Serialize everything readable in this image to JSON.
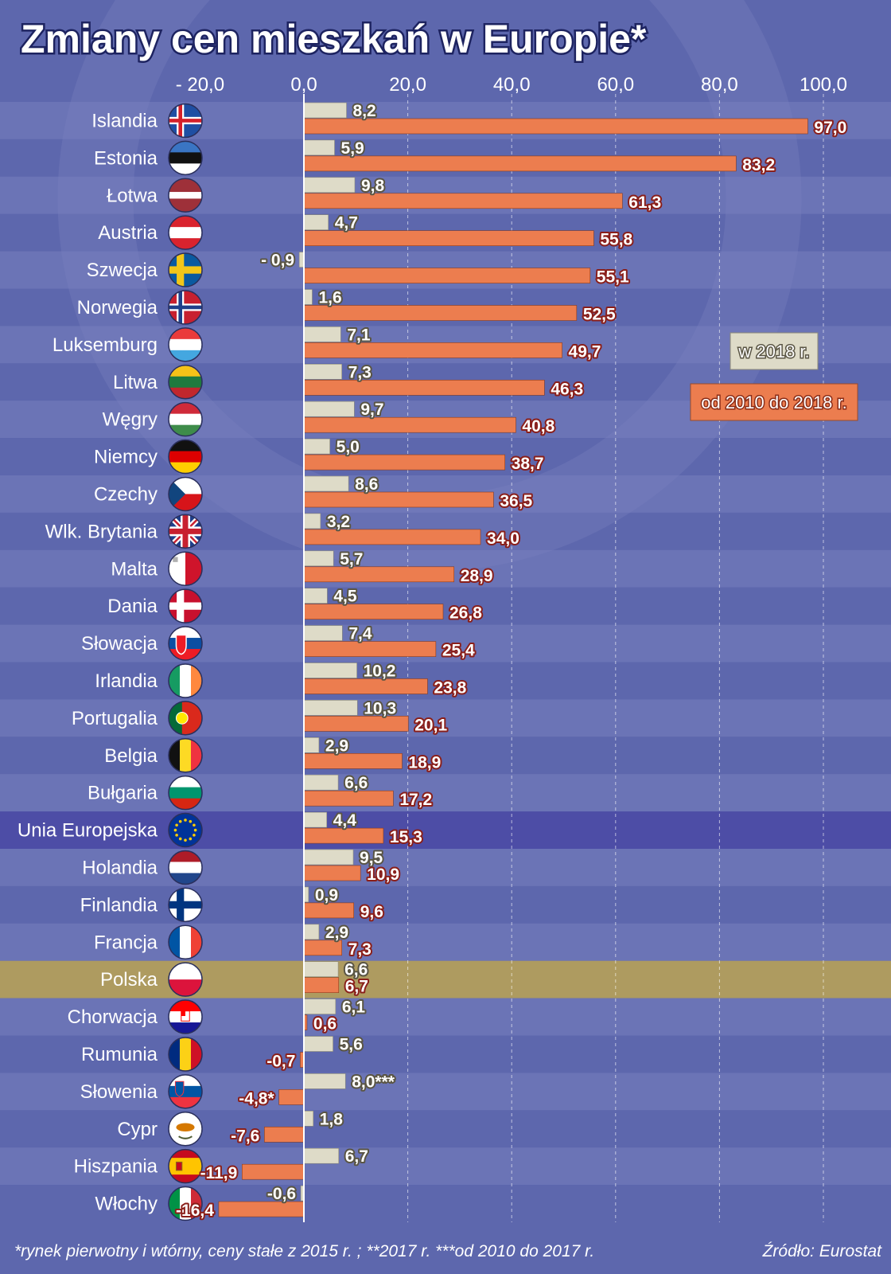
{
  "chart_data": {
    "type": "bar",
    "orientation": "horizontal",
    "title": "Zmiany cen mieszkań w Europie*",
    "x_ticks": [
      "- 20,0",
      "0,0",
      "20,0",
      "40,0",
      "60,0",
      "80,0",
      "100,0"
    ],
    "xlim": [
      -20,
      100
    ],
    "grid": true,
    "legend_position": "right",
    "categories": [
      "Islandia",
      "Estonia",
      "Łotwa",
      "Austria",
      "Szwecja",
      "Norwegia",
      "Luksemburg",
      "Litwa",
      "Węgry",
      "Niemcy",
      "Czechy",
      "Wlk. Brytania",
      "Malta",
      "Dania",
      "Słowacja",
      "Irlandia",
      "Portugalia",
      "Belgia",
      "Bułgaria",
      "Unia Europejska",
      "Holandia",
      "Finlandia",
      "Francja",
      "Polska",
      "Chorwacja",
      "Rumunia",
      "Słowenia",
      "Cypr",
      "Hiszpania",
      "Włochy"
    ],
    "highlighted": {
      "Unia Europejska": "#4d4da6",
      "Polska": "#ae9b60"
    },
    "series": [
      {
        "name": "w 2018 r.",
        "color": "#dedbc8",
        "values": [
          8.2,
          5.9,
          9.8,
          4.7,
          -0.9,
          1.6,
          7.1,
          7.3,
          9.7,
          5.0,
          8.6,
          3.2,
          5.7,
          4.5,
          7.4,
          10.2,
          10.3,
          2.9,
          6.6,
          4.4,
          9.5,
          0.9,
          2.9,
          6.6,
          6.1,
          5.6,
          8.0,
          1.8,
          6.7,
          -0.6
        ],
        "labels": [
          "8,2",
          "5,9",
          "9,8",
          "4,7",
          "- 0,9",
          "1,6",
          "7,1",
          "7,3",
          "9,7",
          "5,0",
          "8,6",
          "3,2",
          "5,7",
          "4,5",
          "7,4",
          "10,2",
          "10,3",
          "2,9",
          "6,6",
          "4,4",
          "9,5",
          "0,9",
          "2,9",
          "6,6",
          "6,1",
          "5,6",
          "8,0***",
          "1,8",
          "6,7",
          "-0,6"
        ]
      },
      {
        "name": "od 2010 do 2018 r.",
        "color": "#ec7d4f",
        "values": [
          97.0,
          83.2,
          61.3,
          55.8,
          55.1,
          52.5,
          49.7,
          46.3,
          40.8,
          38.7,
          36.5,
          34.0,
          28.9,
          26.8,
          25.4,
          23.8,
          20.1,
          18.9,
          17.2,
          15.3,
          10.9,
          9.6,
          7.3,
          6.7,
          0.6,
          -0.7,
          -4.8,
          -7.6,
          -11.9,
          -16.4
        ],
        "labels": [
          "97,0",
          "83,2",
          "61,3",
          "55,8",
          "55,1",
          "52,5",
          "49,7",
          "46,3",
          "40,8",
          "38,7",
          "36,5",
          "34,0",
          "28,9",
          "26,8",
          "25,4",
          "23,8",
          "20,1",
          "18,9",
          "17,2",
          "15,3",
          "10,9",
          "9,6",
          "7,3",
          "6,7",
          "0,6",
          "-0,7",
          "-4,8*",
          "-7,6",
          "-11,9",
          "-16,4"
        ]
      }
    ],
    "footnote": "*rynek pierwotny i wtórny, ceny stałe z 2015 r. ; **2017 r.  ***od 2010 do 2017 r.",
    "source": "Źródło: Eurostat"
  },
  "flags": [
    "iceland-flag",
    "estonia-flag",
    "latvia-flag",
    "austria-flag",
    "sweden-flag",
    "norway-flag",
    "luxembourg-flag",
    "lithuania-flag",
    "hungary-flag",
    "germany-flag",
    "czechia-flag",
    "uk-flag",
    "malta-flag",
    "denmark-flag",
    "slovakia-flag",
    "ireland-flag",
    "portugal-flag",
    "belgium-flag",
    "bulgaria-flag",
    "eu-flag",
    "netherlands-flag",
    "finland-flag",
    "france-flag",
    "poland-flag",
    "croatia-flag",
    "romania-flag",
    "slovenia-flag",
    "cyprus-flag",
    "spain-flag",
    "italy-flag"
  ],
  "colors": {
    "background": "#5d67ad",
    "stripe_light": "#6b74b6",
    "stripe_dark": "#5d67ad",
    "text": "#ffffff",
    "label_text": "#ffffff",
    "label_outline": "#8a1f1a"
  }
}
